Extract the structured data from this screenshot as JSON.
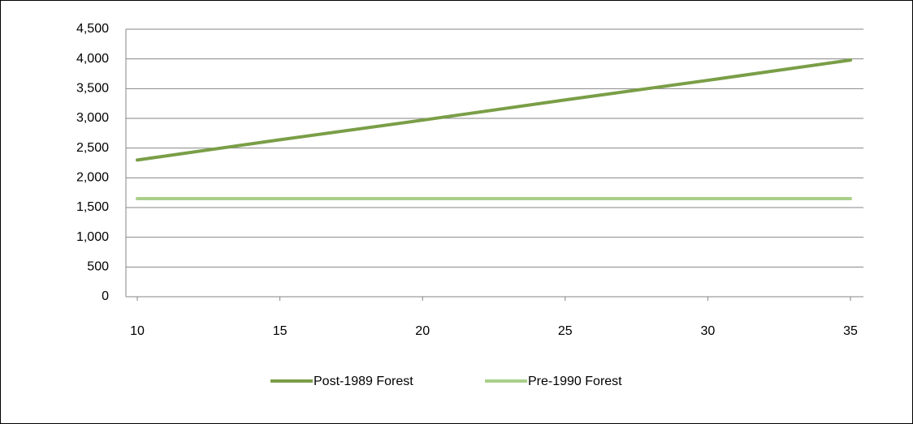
{
  "chart_data": {
    "type": "line",
    "x": [
      10,
      15,
      20,
      25,
      30,
      35
    ],
    "series": [
      {
        "name": "Post-1989 Forest",
        "color": "#7a9e47",
        "values": [
          2300,
          2640,
          2970,
          3310,
          3640,
          3980
        ]
      },
      {
        "name": "Pre-1990 Forest",
        "color": "#a9cf8a",
        "values": [
          1650,
          1650,
          1650,
          1650,
          1650,
          1650
        ]
      }
    ],
    "xlim": [
      10,
      35
    ],
    "xticks": [
      10,
      15,
      20,
      25,
      30,
      35
    ],
    "ylim": [
      0,
      4500
    ],
    "yticks": [
      0,
      500,
      {
        "value": 1000,
        "label": "1,000"
      },
      {
        "value": 1500,
        "label": "1,500"
      },
      {
        "value": 2000,
        "label": "2,000"
      },
      {
        "value": 2500,
        "label": "2,500"
      },
      {
        "value": 3000,
        "label": "3,000"
      },
      {
        "value": 3500,
        "label": "3,500"
      },
      {
        "value": 4000,
        "label": "4,000"
      },
      {
        "value": 4500,
        "label": "4,500"
      }
    ],
    "grid": true,
    "legend": "bottom"
  }
}
